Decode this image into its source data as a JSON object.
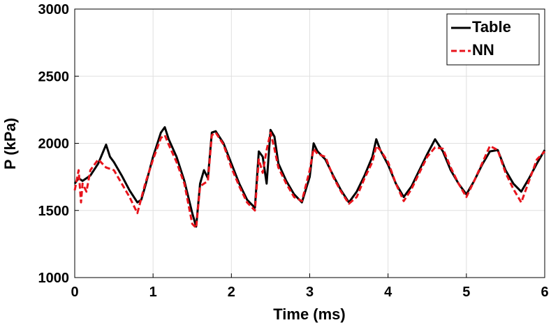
{
  "chart_data": {
    "type": "line",
    "x_label": "Time (ms)",
    "y_label": "P (kPa)",
    "xlim": [
      0,
      6
    ],
    "xticks": [
      0,
      1,
      2,
      3,
      4,
      5,
      6
    ],
    "ylim": [
      1000,
      3000
    ],
    "yticks": [
      1000,
      1500,
      2000,
      2500,
      3000
    ],
    "grid": true,
    "legend": "upper right",
    "series": [
      {
        "name": "Table",
        "color": "#000000",
        "dash": "solid",
        "x": [
          0,
          0.05,
          0.1,
          0.2,
          0.3,
          0.4,
          0.45,
          0.5,
          0.6,
          0.7,
          0.8,
          0.85,
          0.9,
          1.0,
          1.1,
          1.15,
          1.2,
          1.3,
          1.4,
          1.5,
          1.55,
          1.6,
          1.65,
          1.7,
          1.75,
          1.8,
          1.9,
          2.0,
          2.1,
          2.2,
          2.3,
          2.35,
          2.4,
          2.45,
          2.5,
          2.55,
          2.6,
          2.7,
          2.8,
          2.9,
          3.0,
          3.05,
          3.1,
          3.2,
          3.3,
          3.4,
          3.5,
          3.6,
          3.7,
          3.8,
          3.85,
          3.9,
          4.0,
          4.1,
          4.2,
          4.3,
          4.4,
          4.5,
          4.6,
          4.7,
          4.8,
          4.9,
          5.0,
          5.1,
          5.2,
          5.3,
          5.4,
          5.5,
          5.6,
          5.7,
          5.8,
          5.9,
          6.0
        ],
        "values": [
          1700,
          1740,
          1720,
          1760,
          1850,
          1990,
          1900,
          1860,
          1760,
          1650,
          1560,
          1580,
          1680,
          1900,
          2080,
          2120,
          2030,
          1900,
          1720,
          1480,
          1380,
          1700,
          1800,
          1740,
          2080,
          2090,
          2000,
          1850,
          1700,
          1580,
          1520,
          1940,
          1900,
          1700,
          2100,
          2050,
          1850,
          1720,
          1620,
          1560,
          1750,
          2000,
          1940,
          1880,
          1760,
          1650,
          1560,
          1640,
          1760,
          1900,
          2030,
          1950,
          1840,
          1700,
          1600,
          1680,
          1800,
          1920,
          2030,
          1940,
          1800,
          1700,
          1620,
          1720,
          1840,
          1940,
          1950,
          1800,
          1700,
          1640,
          1740,
          1850,
          1950
        ]
      },
      {
        "name": "NN",
        "color": "#e8141c",
        "dash": "dashed",
        "x": [
          0,
          0.05,
          0.08,
          0.1,
          0.15,
          0.2,
          0.3,
          0.4,
          0.5,
          0.6,
          0.7,
          0.8,
          0.9,
          1.0,
          1.1,
          1.15,
          1.2,
          1.3,
          1.4,
          1.5,
          1.55,
          1.6,
          1.7,
          1.75,
          1.8,
          1.9,
          2.0,
          2.1,
          2.2,
          2.3,
          2.35,
          2.4,
          2.45,
          2.5,
          2.55,
          2.6,
          2.7,
          2.8,
          2.9,
          3.0,
          3.05,
          3.1,
          3.2,
          3.3,
          3.4,
          3.5,
          3.6,
          3.7,
          3.8,
          3.85,
          3.9,
          4.0,
          4.1,
          4.2,
          4.3,
          4.4,
          4.5,
          4.6,
          4.7,
          4.8,
          4.9,
          5.0,
          5.1,
          5.2,
          5.3,
          5.4,
          5.5,
          5.6,
          5.7,
          5.8,
          5.9,
          6.0
        ],
        "values": [
          1650,
          1800,
          1560,
          1700,
          1640,
          1800,
          1880,
          1820,
          1800,
          1700,
          1600,
          1480,
          1700,
          1880,
          2040,
          2060,
          1990,
          1860,
          1700,
          1400,
          1370,
          1680,
          1720,
          2060,
          2080,
          1990,
          1820,
          1680,
          1560,
          1500,
          1880,
          1780,
          1950,
          2080,
          1960,
          1820,
          1700,
          1600,
          1570,
          1800,
          1960,
          1920,
          1900,
          1750,
          1640,
          1550,
          1600,
          1740,
          1860,
          1980,
          1950,
          1860,
          1700,
          1570,
          1660,
          1780,
          1900,
          1970,
          1960,
          1820,
          1700,
          1600,
          1720,
          1850,
          1980,
          1950,
          1780,
          1660,
          1560,
          1720,
          1880,
          1940
        ]
      }
    ]
  }
}
